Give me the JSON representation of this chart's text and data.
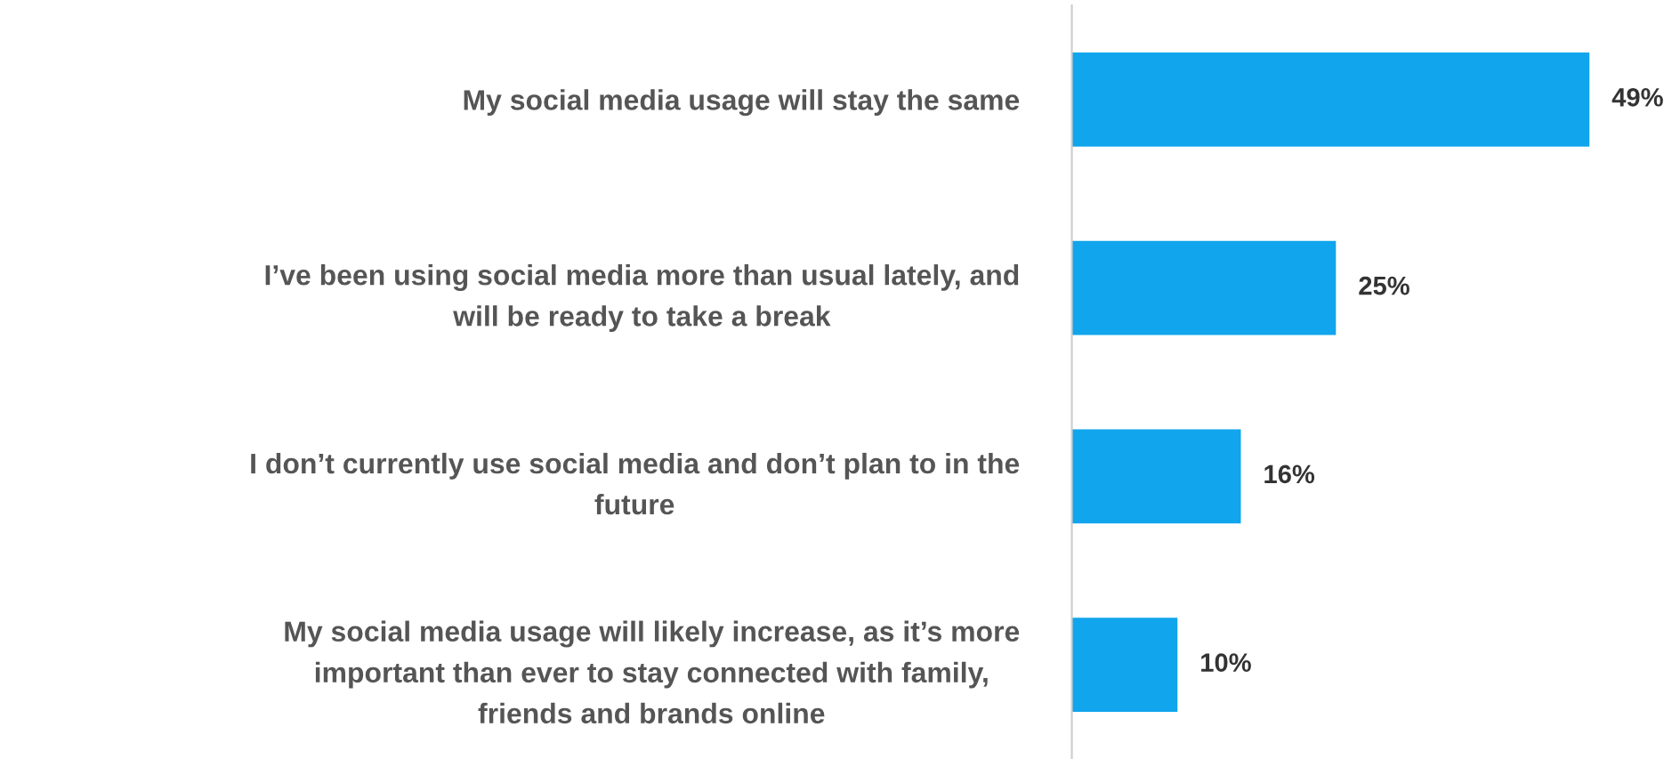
{
  "chart_data": {
    "type": "bar",
    "orientation": "horizontal",
    "categories": [
      "My social media usage will stay the same",
      "I’ve been using social media more than usual lately, and\nwill be ready to take a break",
      "I don’t currently use social media and don’t plan to in the\nfuture",
      "My social media usage will likely increase, as it’s more\nimportant than ever to stay connected with family,\nfriends and brands online"
    ],
    "values": [
      49,
      25,
      16,
      10
    ],
    "value_labels": [
      "49%",
      "25%",
      "16%",
      "10%"
    ],
    "color": "#10a5ec"
  }
}
